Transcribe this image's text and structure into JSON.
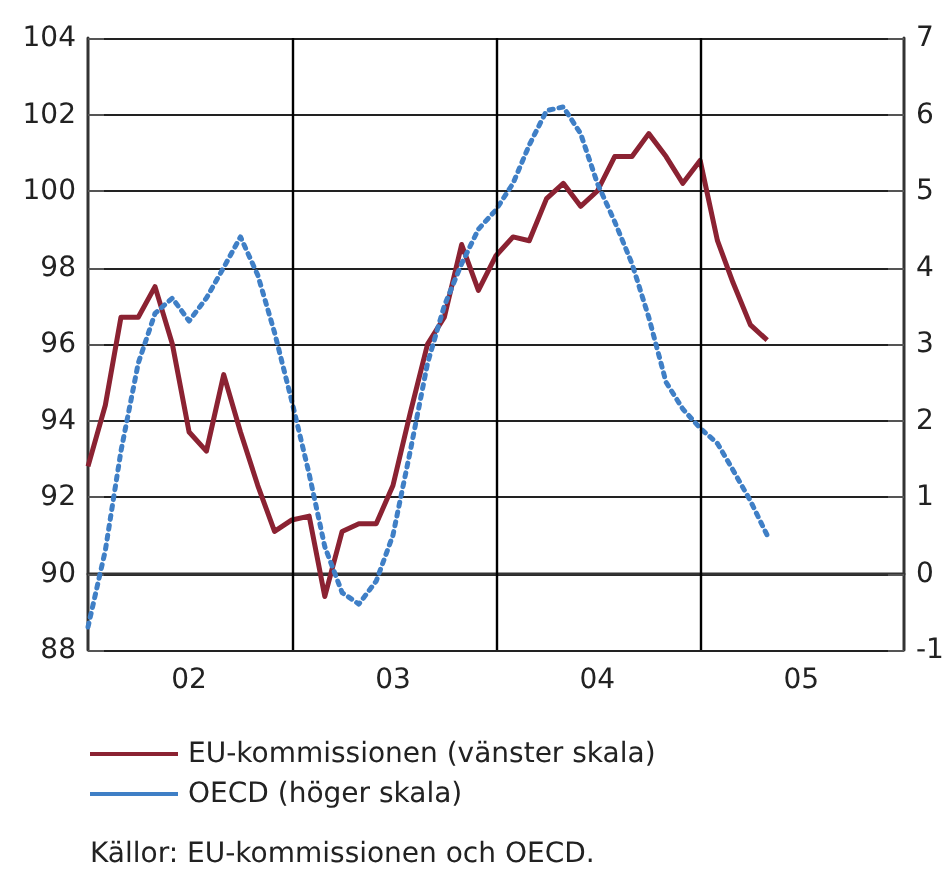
{
  "chart_data": {
    "type": "line",
    "x": [
      "2002-01",
      "2002-02",
      "2002-03",
      "2002-04",
      "2002-05",
      "2002-06",
      "2002-07",
      "2002-08",
      "2002-09",
      "2002-10",
      "2002-11",
      "2002-12",
      "2003-01",
      "2003-02",
      "2003-03",
      "2003-04",
      "2003-05",
      "2003-06",
      "2003-07",
      "2003-08",
      "2003-09",
      "2003-10",
      "2003-11",
      "2003-12",
      "2004-01",
      "2004-02",
      "2004-03",
      "2004-04",
      "2004-05",
      "2004-06",
      "2004-07",
      "2004-08",
      "2004-09",
      "2004-10",
      "2004-11",
      "2004-12",
      "2005-01",
      "2005-02",
      "2005-03",
      "2005-04",
      "2005-05"
    ],
    "series": [
      {
        "name": "EU-kommissionen (vänster skala)",
        "color": "#8b2232",
        "line_style": "solid",
        "values": [
          92.8,
          94.4,
          96.7,
          96.7,
          97.5,
          96.0,
          93.7,
          93.2,
          95.2,
          93.7,
          92.3,
          91.1,
          91.4,
          91.5,
          89.4,
          91.1,
          91.3,
          91.3,
          92.3,
          94.2,
          96.0,
          96.7,
          98.6,
          97.4,
          98.3,
          98.8,
          98.7,
          99.8,
          100.2,
          99.6,
          100.0,
          100.9,
          100.9,
          101.5,
          100.9,
          100.2,
          100.8,
          98.7,
          97.6,
          96.5,
          96.1
        ]
      },
      {
        "name": "OECD (höger skala)",
        "color": "#3f7fc6",
        "line_style": "dotted",
        "axis": "y2",
        "values": [
          -0.7,
          0.3,
          1.6,
          2.75,
          3.4,
          3.6,
          3.3,
          3.6,
          4.0,
          4.4,
          3.9,
          3.15,
          2.25,
          1.3,
          0.35,
          -0.25,
          -0.4,
          -0.1,
          0.5,
          1.6,
          2.75,
          3.5,
          4.05,
          4.5,
          4.75,
          5.1,
          5.6,
          6.05,
          6.1,
          5.75,
          5.1,
          4.6,
          4.05,
          3.35,
          2.5,
          2.15,
          1.9,
          1.7,
          1.35,
          0.95,
          0.5
        ]
      }
    ],
    "xlim": [
      "2002-01",
      "2006-01"
    ],
    "xticks": [
      {
        "value": "2002-07",
        "label": "02"
      },
      {
        "value": "2003-07",
        "label": "03"
      },
      {
        "value": "2004-07",
        "label": "04"
      },
      {
        "value": "2005-07",
        "label": "05"
      }
    ],
    "ylim": [
      88,
      104
    ],
    "yticks": [
      88,
      90,
      92,
      94,
      96,
      98,
      100,
      102,
      104
    ],
    "y2lim": [
      -1,
      7
    ],
    "y2ticks": [
      -1,
      0,
      1,
      2,
      3,
      4,
      5,
      6,
      7
    ],
    "ref_lines": [
      {
        "axis": "x",
        "value": "2003-01",
        "color": "#000000"
      },
      {
        "axis": "x",
        "value": "2004-01",
        "color": "#000000"
      },
      {
        "axis": "x",
        "value": "2005-01",
        "color": "#000000"
      }
    ],
    "grid": "y",
    "legend": "bottom",
    "marker": "none",
    "annotations": [
      "Källor: EU-kommissionen och OECD."
    ]
  }
}
